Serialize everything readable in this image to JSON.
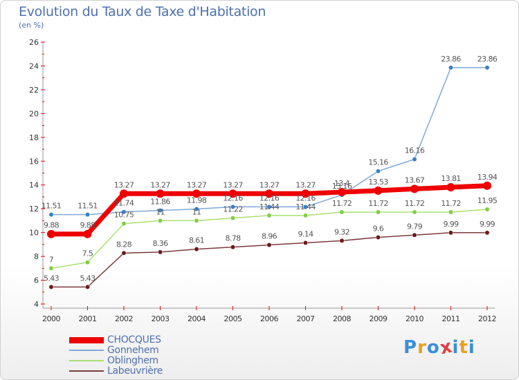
{
  "title": "Evolution du Taux de Taxe d'Habitation",
  "subtitle": "(en %)",
  "logo": {
    "letters": [
      "P",
      "r",
      "o",
      "x",
      "i",
      "t",
      "i"
    ],
    "colors": [
      "#3a8fd8",
      "#e8a020",
      "#3a8fd8",
      "#e04040",
      "#3a8fd8",
      "#e8a020",
      "#3a8fd8"
    ]
  },
  "chart_data": {
    "type": "line",
    "x": [
      "2000",
      "2001",
      "2002",
      "2003",
      "2004",
      "2005",
      "2006",
      "2007",
      "2008",
      "2009",
      "2010",
      "2011",
      "2012"
    ],
    "ylim": [
      4,
      26
    ],
    "yticks": [
      "4",
      "6",
      "8",
      "10",
      "12",
      "14",
      "16",
      "18",
      "20",
      "22",
      "24",
      "26"
    ],
    "grid": false,
    "legend_position": "bottom-left",
    "series": [
      {
        "name": "CHOCQUES",
        "color": "#ee0000",
        "marker_color": "#ee0000",
        "style": "thick",
        "values": [
          9.88,
          9.88,
          13.27,
          13.27,
          13.27,
          13.27,
          13.27,
          13.27,
          13.4,
          13.53,
          13.67,
          13.81,
          13.94
        ],
        "labels": [
          "9.88",
          "9.88",
          "13.27",
          "13.27",
          "13.27",
          "13.27",
          "13.27",
          "13.27",
          "13.4",
          "13.53",
          "13.67",
          "13.81",
          "13.94"
        ]
      },
      {
        "name": "Gonnehem",
        "color": "#7fa9d8",
        "marker_color": "#3a7fc8",
        "style": "thin",
        "values": [
          11.51,
          11.51,
          11.74,
          11.86,
          11.98,
          12.16,
          12.16,
          12.16,
          13.16,
          15.16,
          16.16,
          23.86,
          23.86
        ],
        "labels": [
          "11.51",
          "11.51",
          "11.74",
          "11.86",
          "11.98",
          "12.16",
          "12.16",
          "12.16",
          "13.16",
          "15.16",
          "16.16",
          "23.86",
          "23.86"
        ]
      },
      {
        "name": "Oblinghem",
        "color": "#a8e070",
        "marker_color": "#7fd040",
        "style": "thin",
        "values": [
          7,
          7.5,
          10.75,
          11,
          11,
          11.22,
          11.44,
          11.44,
          11.72,
          11.72,
          11.72,
          11.72,
          11.95
        ],
        "labels": [
          "7",
          "7.5",
          "10.75",
          "11",
          "11",
          "11.22",
          "11.44",
          "11.44",
          "11.72",
          "11.72",
          "11.72",
          "11.72",
          "11.95"
        ]
      },
      {
        "name": "Labeuvrière",
        "color": "#7a3a3a",
        "marker_color": "#6a1a1a",
        "style": "thin",
        "values": [
          5.43,
          5.43,
          8.28,
          8.36,
          8.61,
          8.78,
          8.96,
          9.14,
          9.32,
          9.6,
          9.79,
          9.99,
          9.99
        ],
        "labels": [
          "5.43",
          "5.43",
          "8.28",
          "8.36",
          "8.61",
          "8.78",
          "8.96",
          "9.14",
          "9.32",
          "9.6",
          "9.79",
          "9.99",
          "9.99"
        ]
      }
    ]
  }
}
